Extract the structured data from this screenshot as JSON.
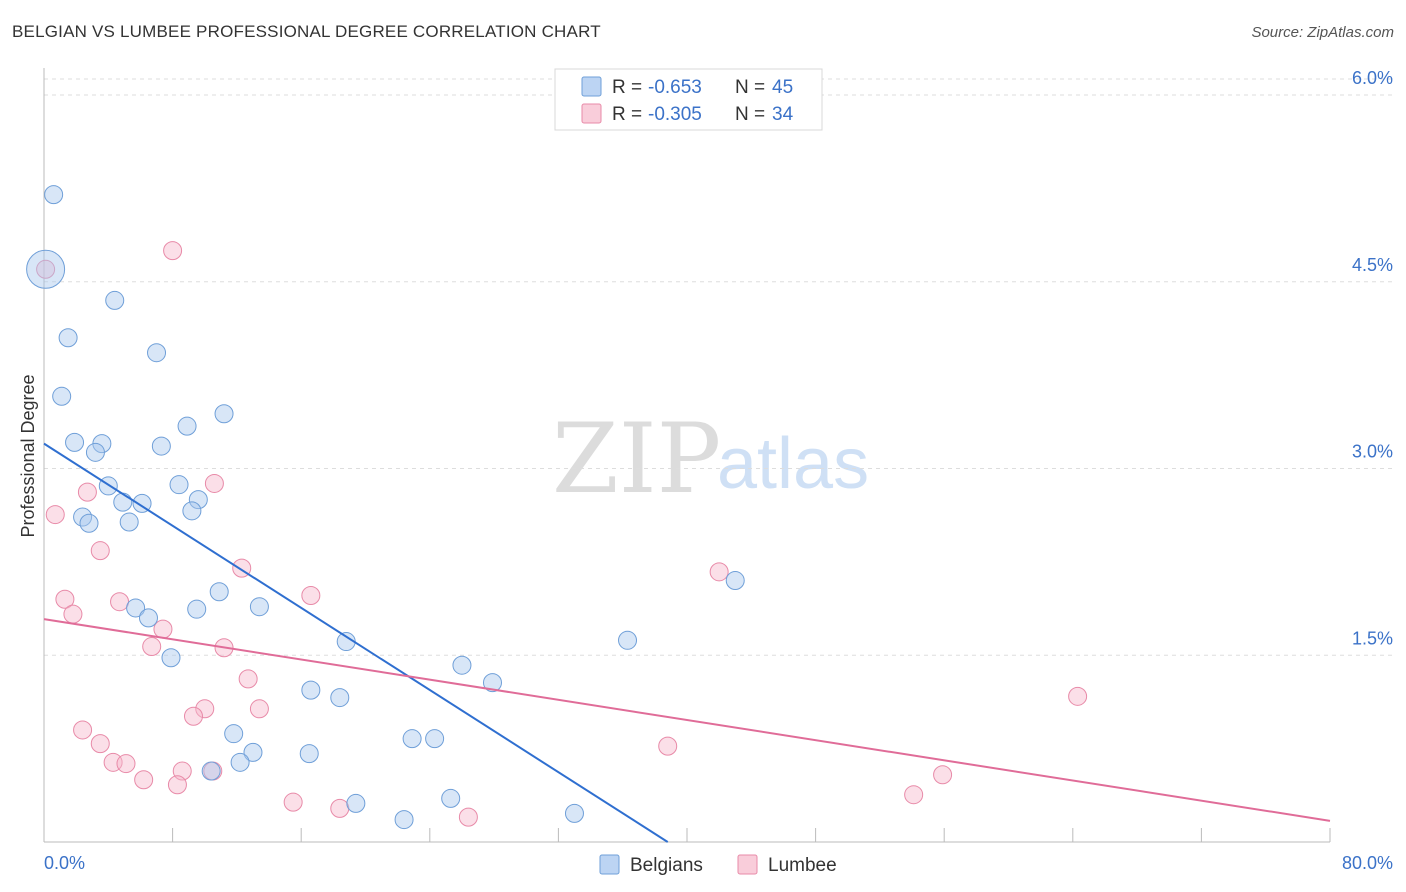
{
  "header": {
    "title": "BELGIAN VS LUMBEE PROFESSIONAL DEGREE CORRELATION CHART",
    "source": "Source: ZipAtlas.com"
  },
  "watermark": {
    "part1": "ZIP",
    "part2": "atlas"
  },
  "legend_top": {
    "rows": [
      {
        "r_label": "R =",
        "r_value": "-0.653",
        "n_label": "N =",
        "n_value": "45",
        "color": "#a9c8ee"
      },
      {
        "r_label": "R =",
        "r_value": "-0.305",
        "n_label": "N =",
        "n_value": "34",
        "color": "#f6b8cb"
      }
    ]
  },
  "legend_bottom": {
    "items": [
      "Belgians",
      "Lumbee"
    ]
  },
  "chart_data": {
    "type": "scatter",
    "title": "BELGIAN VS LUMBEE PROFESSIONAL DEGREE CORRELATION CHART",
    "xlabel": "",
    "ylabel": "Professional Degree",
    "xlim": [
      0,
      80
    ],
    "ylim": [
      0,
      6.2
    ],
    "x_tick_labels": [
      "0.0%",
      "80.0%"
    ],
    "y_ticks": [
      1.5,
      3.0,
      4.5,
      6.0
    ],
    "y_tick_labels": [
      "1.5%",
      "3.0%",
      "4.5%",
      "6.0%"
    ],
    "series": [
      {
        "name": "Belgians",
        "color": "#a9c8ee",
        "stroke": "#6f9fd8",
        "line_color": "#2f6fd0",
        "r": -0.653,
        "n": 45,
        "trend": {
          "x": [
            0,
            38.8
          ],
          "y": [
            3.2,
            0.0
          ]
        },
        "points": [
          {
            "x": 0.1,
            "y": 4.6,
            "big": true
          },
          {
            "x": 0.6,
            "y": 5.2
          },
          {
            "x": 4.4,
            "y": 4.35
          },
          {
            "x": 1.5,
            "y": 4.05
          },
          {
            "x": 7.0,
            "y": 3.93
          },
          {
            "x": 1.1,
            "y": 3.58
          },
          {
            "x": 11.2,
            "y": 3.44
          },
          {
            "x": 8.9,
            "y": 3.34
          },
          {
            "x": 1.9,
            "y": 3.21
          },
          {
            "x": 3.6,
            "y": 3.2
          },
          {
            "x": 3.2,
            "y": 3.13
          },
          {
            "x": 7.3,
            "y": 3.18
          },
          {
            "x": 4.0,
            "y": 2.86
          },
          {
            "x": 8.4,
            "y": 2.87
          },
          {
            "x": 4.9,
            "y": 2.73
          },
          {
            "x": 6.1,
            "y": 2.72
          },
          {
            "x": 9.6,
            "y": 2.75
          },
          {
            "x": 9.2,
            "y": 2.66
          },
          {
            "x": 2.4,
            "y": 2.61
          },
          {
            "x": 2.8,
            "y": 2.56
          },
          {
            "x": 5.3,
            "y": 2.57
          },
          {
            "x": 43.0,
            "y": 2.1
          },
          {
            "x": 10.9,
            "y": 2.01
          },
          {
            "x": 5.7,
            "y": 1.88
          },
          {
            "x": 9.5,
            "y": 1.87
          },
          {
            "x": 13.4,
            "y": 1.89
          },
          {
            "x": 6.5,
            "y": 1.8
          },
          {
            "x": 18.8,
            "y": 1.61
          },
          {
            "x": 36.3,
            "y": 1.62
          },
          {
            "x": 7.9,
            "y": 1.48
          },
          {
            "x": 26.0,
            "y": 1.42
          },
          {
            "x": 27.9,
            "y": 1.28
          },
          {
            "x": 16.6,
            "y": 1.22
          },
          {
            "x": 18.4,
            "y": 1.16
          },
          {
            "x": 11.8,
            "y": 0.87
          },
          {
            "x": 22.9,
            "y": 0.83
          },
          {
            "x": 24.3,
            "y": 0.83
          },
          {
            "x": 13.0,
            "y": 0.72
          },
          {
            "x": 16.5,
            "y": 0.71
          },
          {
            "x": 12.2,
            "y": 0.64
          },
          {
            "x": 10.4,
            "y": 0.57
          },
          {
            "x": 25.3,
            "y": 0.35
          },
          {
            "x": 19.4,
            "y": 0.31
          },
          {
            "x": 33.0,
            "y": 0.23
          },
          {
            "x": 22.4,
            "y": 0.18
          }
        ]
      },
      {
        "name": "Lumbee",
        "color": "#f6b8cb",
        "stroke": "#e88aa8",
        "line_color": "#e06c98",
        "r": -0.305,
        "n": 34,
        "trend": {
          "x": [
            0,
            80
          ],
          "y": [
            1.79,
            0.17
          ]
        },
        "points": [
          {
            "x": 0.1,
            "y": 4.6
          },
          {
            "x": 8.0,
            "y": 4.75
          },
          {
            "x": 10.6,
            "y": 2.88
          },
          {
            "x": 0.7,
            "y": 2.63
          },
          {
            "x": 2.7,
            "y": 2.81
          },
          {
            "x": 3.5,
            "y": 2.34
          },
          {
            "x": 12.3,
            "y": 2.2
          },
          {
            "x": 42.0,
            "y": 2.17
          },
          {
            "x": 1.3,
            "y": 1.95
          },
          {
            "x": 4.7,
            "y": 1.93
          },
          {
            "x": 16.6,
            "y": 1.98
          },
          {
            "x": 1.8,
            "y": 1.83
          },
          {
            "x": 7.4,
            "y": 1.71
          },
          {
            "x": 6.7,
            "y": 1.57
          },
          {
            "x": 11.2,
            "y": 1.56
          },
          {
            "x": 12.7,
            "y": 1.31
          },
          {
            "x": 64.3,
            "y": 1.17
          },
          {
            "x": 10.0,
            "y": 1.07
          },
          {
            "x": 13.4,
            "y": 1.07
          },
          {
            "x": 9.3,
            "y": 1.01
          },
          {
            "x": 2.4,
            "y": 0.9
          },
          {
            "x": 3.5,
            "y": 0.79
          },
          {
            "x": 38.8,
            "y": 0.77
          },
          {
            "x": 4.3,
            "y": 0.64
          },
          {
            "x": 5.1,
            "y": 0.63
          },
          {
            "x": 8.6,
            "y": 0.57
          },
          {
            "x": 10.5,
            "y": 0.57
          },
          {
            "x": 55.9,
            "y": 0.54
          },
          {
            "x": 6.2,
            "y": 0.5
          },
          {
            "x": 8.3,
            "y": 0.46
          },
          {
            "x": 54.1,
            "y": 0.38
          },
          {
            "x": 15.5,
            "y": 0.32
          },
          {
            "x": 18.4,
            "y": 0.27
          },
          {
            "x": 26.4,
            "y": 0.2
          }
        ]
      }
    ]
  }
}
